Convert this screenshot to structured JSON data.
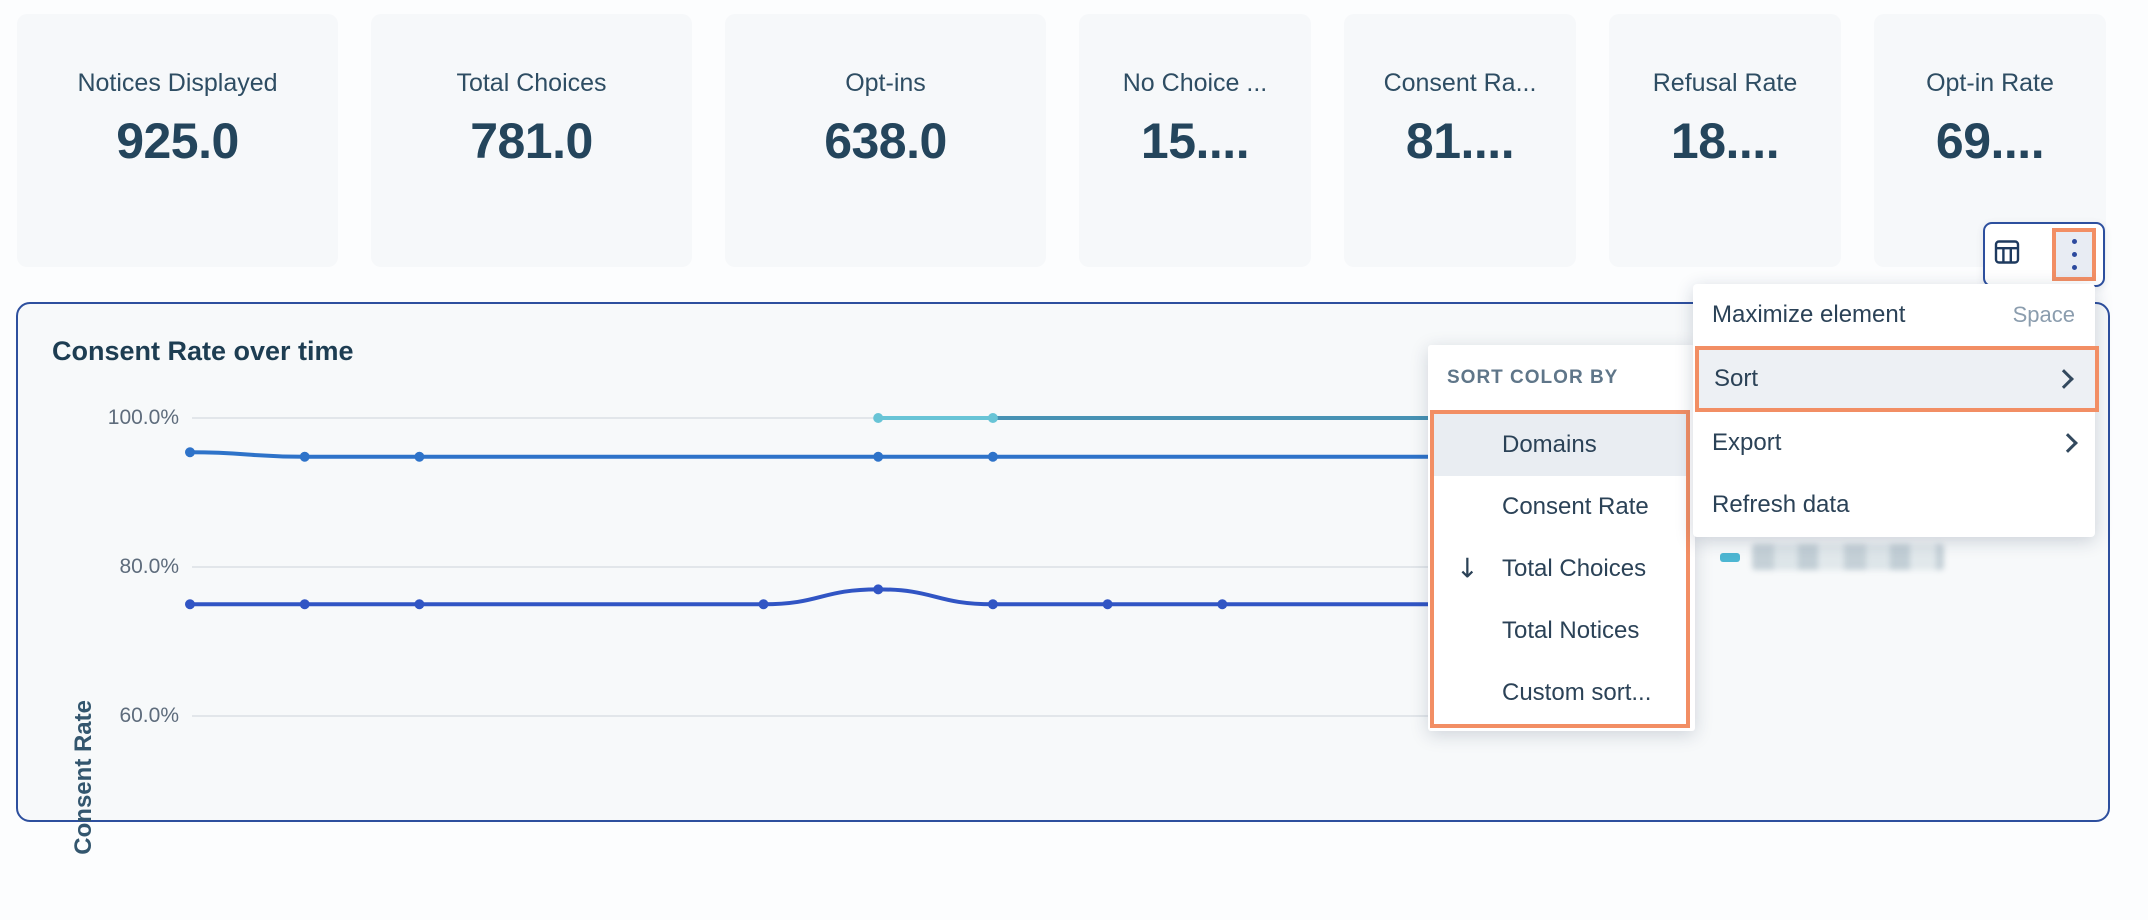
{
  "kpi_cards": [
    {
      "label": "Notices Displayed",
      "value": "925.0"
    },
    {
      "label": "Total Choices",
      "value": "781.0"
    },
    {
      "label": "Opt-ins",
      "value": "638.0"
    },
    {
      "label": "No Choice ...",
      "value": "15...."
    },
    {
      "label": "Consent Ra...",
      "value": "81...."
    },
    {
      "label": "Refusal Rate",
      "value": "18...."
    },
    {
      "label": "Opt-in Rate",
      "value": "69...."
    }
  ],
  "toolbar": {
    "icons": [
      "table-icon",
      "kebab-menu-icon"
    ],
    "kebab_highlighted": true
  },
  "context_menu": {
    "items": [
      {
        "label": "Maximize element",
        "shortcut": "Space"
      },
      {
        "label": "Sort",
        "has_submenu": true,
        "highlighted": true
      },
      {
        "label": "Export",
        "has_submenu": true
      },
      {
        "label": "Refresh data"
      }
    ]
  },
  "sort_submenu": {
    "header": "SORT COLOR BY",
    "items": [
      {
        "label": "Domains",
        "hovered": true
      },
      {
        "label": "Consent Rate"
      },
      {
        "label": "Total Choices",
        "sort_icon": "arrow-down",
        "sort_glyph": "↓"
      },
      {
        "label": "Total Notices"
      },
      {
        "label": "Custom sort..."
      }
    ]
  },
  "chart": {
    "title": "Consent Rate over time",
    "ylabel": "Consent Rate",
    "yticks": [
      "100.0%",
      "80.0%",
      "60.0%"
    ],
    "legend": [
      {
        "swatch_color": "#4db6d2",
        "label_redacted": true
      }
    ]
  },
  "chart_data": {
    "type": "line",
    "title": "Consent Rate over time",
    "ylabel": "Consent Rate",
    "ylim": [
      55,
      103
    ],
    "ytick_values": [
      100,
      80,
      60
    ],
    "grid": "horizontal",
    "legend_position": "right",
    "x_axis_note_visible": false,
    "series": [
      {
        "name": "series-blue",
        "color": "#2e73c9",
        "points": [
          [
            0,
            95.4
          ],
          [
            1,
            94.8
          ],
          [
            2,
            94.8
          ],
          [
            6,
            94.8
          ],
          [
            7,
            94.8
          ]
        ],
        "extend_right": true,
        "markers": true
      },
      {
        "name": "series-royal",
        "color": "#3155c4",
        "points": [
          [
            0,
            75
          ],
          [
            1,
            75
          ],
          [
            2,
            75
          ],
          [
            5,
            75
          ],
          [
            6,
            77
          ],
          [
            7,
            75
          ],
          [
            8,
            75
          ],
          [
            9,
            75
          ]
        ],
        "extend_right": true,
        "markers": true
      },
      {
        "name": "series-teal",
        "color": "#4792b4",
        "points": [
          [
            7,
            100
          ]
        ],
        "extend_right": true,
        "markers": false
      },
      {
        "name": "series-teal-highlight",
        "color": "#68c4d6",
        "points": [
          [
            6,
            100
          ],
          [
            7,
            100
          ]
        ],
        "extend_right": false,
        "markers": true
      }
    ]
  },
  "colors": {
    "accent_orange": "#f28e64",
    "panel_border_blue": "#2d4f9e",
    "card_bg": "#f6f8fa",
    "panel_bg": "#f7f9fa",
    "gridline": "#e2e6ea",
    "text_dark": "#24455c",
    "tick_text": "#5e6c7c"
  }
}
